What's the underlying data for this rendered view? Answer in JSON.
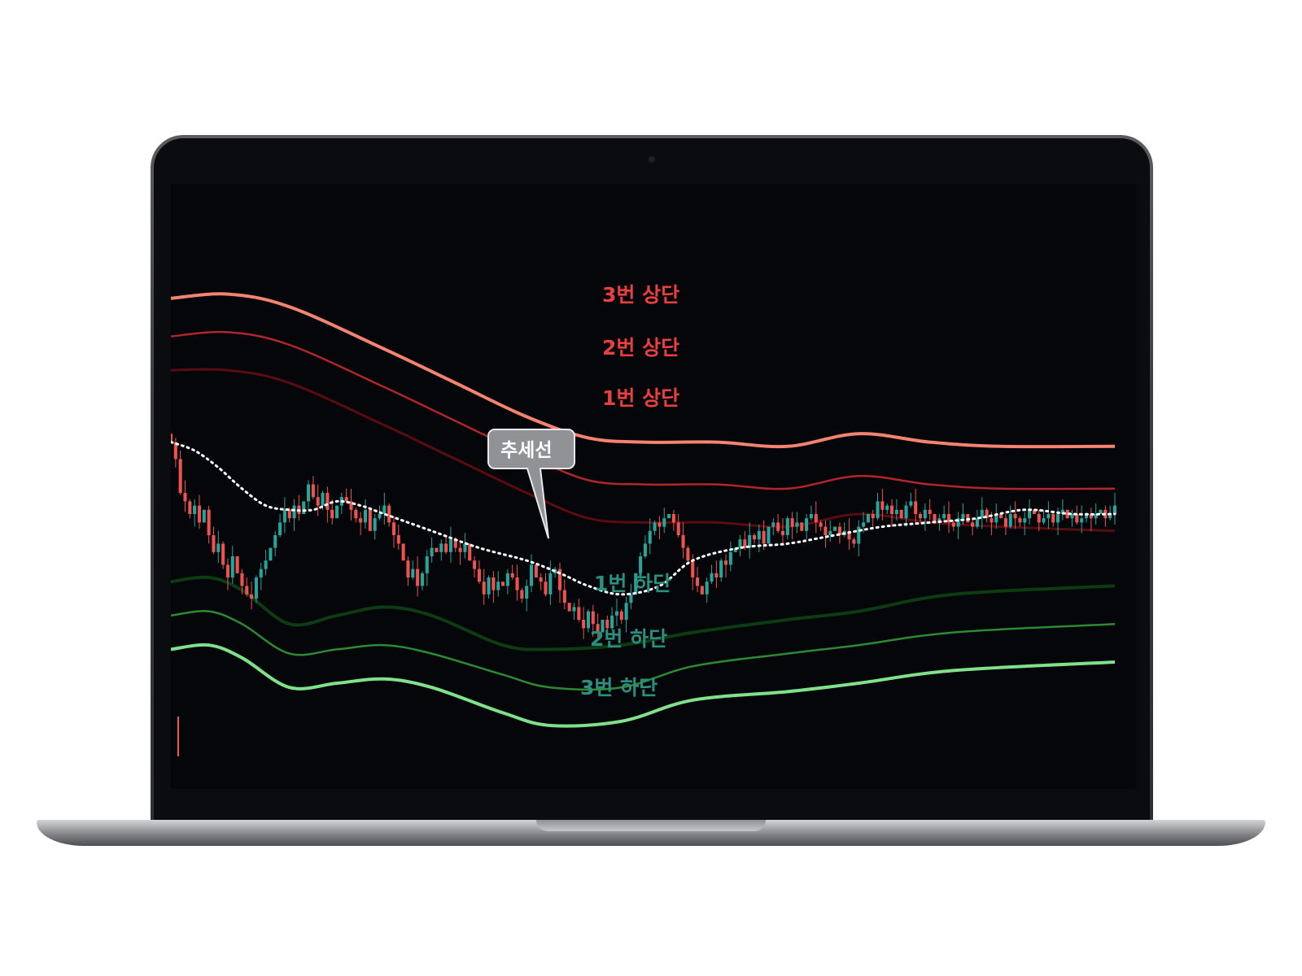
{
  "chart_data": {
    "type": "line",
    "title": "",
    "xlabel": "",
    "ylabel": "",
    "grid": false,
    "ylim": [
      0,
      100
    ],
    "x_count": 200,
    "band_labels": {
      "upper3": "3번 상단",
      "upper2": "2번 상단",
      "upper1": "1번 상단",
      "lower1": "1번 하단",
      "lower2": "2번 하단",
      "lower3": "3번 하단"
    },
    "trend_label": "추세선",
    "series": [
      {
        "key": "upper3",
        "color": "#f4836f",
        "values": [
          [
            0,
            96
          ],
          [
            12,
            97
          ],
          [
            25,
            94
          ],
          [
            45,
            84
          ],
          [
            60,
            76
          ],
          [
            75,
            68
          ],
          [
            88,
            63
          ],
          [
            100,
            62
          ],
          [
            115,
            62
          ],
          [
            130,
            61
          ],
          [
            145,
            64
          ],
          [
            160,
            62
          ],
          [
            175,
            61
          ],
          [
            199,
            61
          ]
        ]
      },
      {
        "key": "upper2",
        "color": "#b0262b",
        "values": [
          [
            0,
            87
          ],
          [
            12,
            88
          ],
          [
            25,
            85
          ],
          [
            45,
            75
          ],
          [
            60,
            67
          ],
          [
            75,
            59
          ],
          [
            88,
            53
          ],
          [
            100,
            52
          ],
          [
            115,
            52
          ],
          [
            130,
            51
          ],
          [
            145,
            54
          ],
          [
            160,
            52
          ],
          [
            175,
            51
          ],
          [
            199,
            51
          ]
        ]
      },
      {
        "key": "upper1",
        "color": "#5a0c10",
        "values": [
          [
            0,
            79
          ],
          [
            12,
            79
          ],
          [
            25,
            76
          ],
          [
            45,
            66
          ],
          [
            60,
            58
          ],
          [
            75,
            50
          ],
          [
            88,
            44
          ],
          [
            100,
            43
          ],
          [
            115,
            43
          ],
          [
            130,
            42
          ],
          [
            145,
            45
          ],
          [
            160,
            43
          ],
          [
            175,
            42
          ],
          [
            199,
            41
          ]
        ]
      },
      {
        "key": "lower1",
        "color": "#0d3b12",
        "values": [
          [
            0,
            29
          ],
          [
            8,
            30
          ],
          [
            15,
            27
          ],
          [
            25,
            19
          ],
          [
            35,
            21
          ],
          [
            45,
            23
          ],
          [
            55,
            21
          ],
          [
            70,
            14
          ],
          [
            80,
            13
          ],
          [
            95,
            14
          ],
          [
            110,
            17
          ],
          [
            130,
            20
          ],
          [
            145,
            22
          ],
          [
            165,
            26
          ],
          [
            199,
            28
          ]
        ]
      },
      {
        "key": "lower2",
        "color": "#2c8a33",
        "values": [
          [
            0,
            21
          ],
          [
            8,
            22
          ],
          [
            15,
            19
          ],
          [
            25,
            12
          ],
          [
            35,
            13
          ],
          [
            45,
            14
          ],
          [
            55,
            12
          ],
          [
            70,
            7
          ],
          [
            80,
            4
          ],
          [
            95,
            4
          ],
          [
            110,
            9
          ],
          [
            130,
            12
          ],
          [
            145,
            14
          ],
          [
            165,
            17
          ],
          [
            199,
            19
          ]
        ]
      },
      {
        "key": "lower3",
        "color": "#7fe28a",
        "values": [
          [
            0,
            13
          ],
          [
            8,
            14
          ],
          [
            15,
            11
          ],
          [
            25,
            4
          ],
          [
            35,
            5
          ],
          [
            45,
            6
          ],
          [
            55,
            4
          ],
          [
            70,
            -2
          ],
          [
            80,
            -5
          ],
          [
            95,
            -4
          ],
          [
            110,
            1
          ],
          [
            130,
            3
          ],
          [
            145,
            5
          ],
          [
            165,
            8
          ],
          [
            199,
            10
          ]
        ]
      },
      {
        "key": "trend",
        "color": "#ffffff",
        "values": [
          [
            0,
            62
          ],
          [
            5,
            60
          ],
          [
            10,
            56
          ],
          [
            15,
            51
          ],
          [
            20,
            47
          ],
          [
            25,
            46
          ],
          [
            30,
            46
          ],
          [
            35,
            48
          ],
          [
            40,
            47
          ],
          [
            45,
            45
          ],
          [
            55,
            41
          ],
          [
            65,
            37
          ],
          [
            75,
            34
          ],
          [
            82,
            31
          ],
          [
            88,
            28
          ],
          [
            95,
            26
          ],
          [
            103,
            28
          ],
          [
            110,
            34
          ],
          [
            120,
            37
          ],
          [
            130,
            38
          ],
          [
            140,
            40
          ],
          [
            150,
            42
          ],
          [
            160,
            43
          ],
          [
            170,
            44
          ],
          [
            180,
            46
          ],
          [
            190,
            45
          ],
          [
            199,
            45
          ]
        ]
      }
    ],
    "candles": {
      "up_color": "#26a69a",
      "down_color": "#ef5350",
      "count": 200,
      "close": [
        62,
        58,
        50,
        48,
        45,
        47,
        43,
        46,
        40,
        36,
        38,
        33,
        30,
        35,
        31,
        28,
        26,
        25,
        30,
        32,
        34,
        37,
        40,
        43,
        46,
        44,
        47,
        45,
        48,
        52,
        49,
        47,
        50,
        46,
        44,
        47,
        49,
        48,
        46,
        44,
        43,
        46,
        41,
        44,
        45,
        47,
        43,
        40,
        38,
        34,
        30,
        32,
        28,
        31,
        35,
        37,
        36,
        38,
        36,
        39,
        37,
        36,
        38,
        34,
        32,
        29,
        26,
        30,
        27,
        29,
        28,
        31,
        30,
        27,
        25,
        28,
        33,
        30,
        29,
        26,
        31,
        32,
        27,
        24,
        22,
        23,
        20,
        18,
        22,
        19,
        17,
        20,
        18,
        21,
        22,
        20,
        24,
        26,
        31,
        35,
        38,
        41,
        43,
        42,
        44,
        45,
        43,
        40,
        37,
        34,
        30,
        28,
        26,
        29,
        31,
        30,
        34,
        33,
        36,
        37,
        39,
        37,
        40,
        39,
        41,
        38,
        42,
        43,
        41,
        40,
        44,
        42,
        43,
        41,
        44,
        45,
        43,
        42,
        40,
        41,
        42,
        40,
        41,
        39,
        38,
        42,
        43,
        45,
        44,
        48,
        46,
        47,
        45,
        46,
        44,
        47,
        48,
        45,
        44,
        46,
        45,
        43,
        44,
        45,
        43,
        42,
        44,
        45,
        43,
        42,
        44,
        46,
        44,
        43,
        45,
        44,
        42,
        45,
        44,
        43,
        44,
        46,
        45,
        43,
        44,
        45,
        43,
        45,
        46,
        44,
        45,
        43,
        44,
        45,
        44,
        45,
        46,
        44,
        45,
        47
      ],
      "high_offset": 3,
      "low_offset": 3
    }
  }
}
